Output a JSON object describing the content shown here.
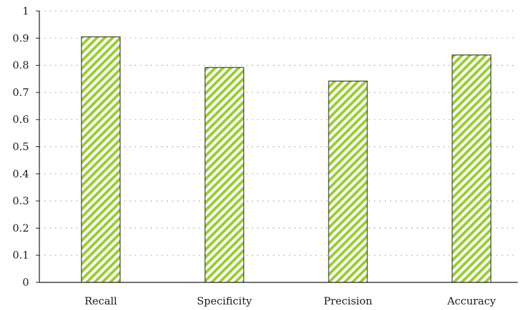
{
  "chart_data": {
    "type": "bar",
    "title": "",
    "xlabel": "",
    "ylabel": "",
    "categories": [
      "Recall",
      "Specificity",
      "Precision",
      "Accuracy"
    ],
    "values": [
      0.905,
      0.792,
      0.742,
      0.838
    ],
    "ylim": [
      0,
      1
    ],
    "yticks": [
      0,
      0.1,
      0.2,
      0.3,
      0.4,
      0.5,
      0.6,
      0.7,
      0.8,
      0.9,
      1
    ],
    "ytick_labels": [
      "0",
      "0.1",
      "0.2",
      "0.3",
      "0.4",
      "0.5",
      "0.6",
      "0.7",
      "0.8",
      "0.9",
      "1"
    ],
    "grid": true,
    "grid_style": "dotted",
    "legend": "none",
    "bar_fill_pattern": "diagonal-stripes",
    "bar_stripe_color": "#9acd32",
    "bar_edge_color": "#1a1a1a",
    "axis_color": "#1a1a1a",
    "grid_color": "#8a8a8a"
  }
}
